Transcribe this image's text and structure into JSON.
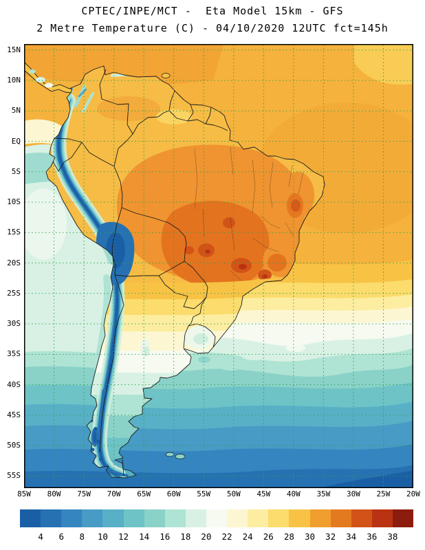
{
  "title": {
    "line1": "CPTEC/INPE/MCT -  Eta Model 15km - GFS",
    "line2": "2 Metre Temperature (C) - 04/10/2020 12UTC fct=145h"
  },
  "axes": {
    "lat_labels": [
      "15N",
      "10N",
      "5N",
      "EQ",
      "5S",
      "10S",
      "15S",
      "20S",
      "25S",
      "30S",
      "35S",
      "40S",
      "45S",
      "50S",
      "55S"
    ],
    "lon_labels": [
      "85W",
      "80W",
      "75W",
      "70W",
      "65W",
      "60W",
      "55W",
      "50W",
      "45W",
      "40W",
      "35W",
      "30W",
      "25W",
      "20W"
    ]
  },
  "grid": {
    "color": "#2ca44e"
  },
  "colorbar": {
    "tick_labels": [
      "4",
      "6",
      "8",
      "10",
      "12",
      "14",
      "16",
      "18",
      "20",
      "22",
      "24",
      "26",
      "28",
      "30",
      "32",
      "34",
      "36",
      "38"
    ],
    "colors": [
      "#1a5fa5",
      "#2671b2",
      "#3585c0",
      "#479bc5",
      "#58b0c7",
      "#6ec3c6",
      "#8ad2c8",
      "#afe3d4",
      "#d8f1e4",
      "#f6faf0",
      "#fdf6d2",
      "#fceda0",
      "#fbdc6c",
      "#f8c345",
      "#f09e2e",
      "#e47a20",
      "#d25317",
      "#b93312",
      "#8c1c0d"
    ]
  }
}
